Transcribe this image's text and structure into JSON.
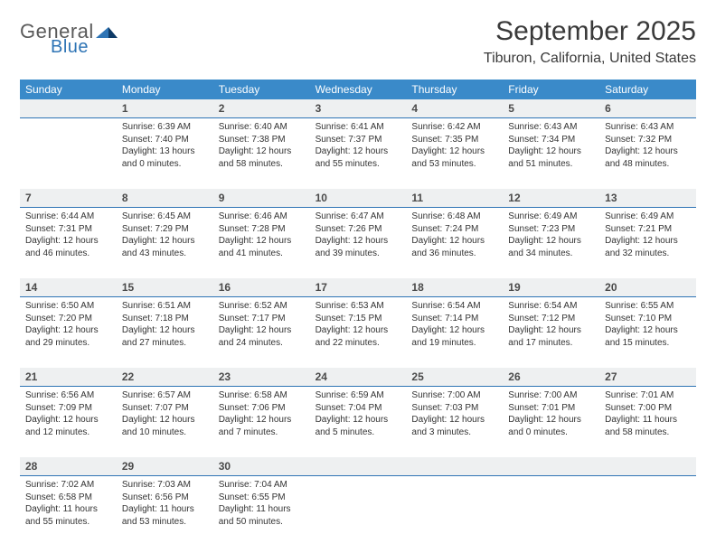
{
  "logo": {
    "general": "General",
    "blue": "Blue"
  },
  "title": "September 2025",
  "subtitle": "Tiburon, California, United States",
  "style": {
    "header_bg": "#3a8ac9",
    "header_text": "#ffffff",
    "daynum_bg": "#eef0f1",
    "daynum_border": "#2e74b5",
    "body_text": "#333333",
    "title_color": "#3a3a3a",
    "logo_gray": "#5a5a5a",
    "logo_blue": "#2e74b5",
    "title_fontsize": 30,
    "subtitle_fontsize": 16,
    "dayheader_fontsize": 12,
    "daynum_fontsize": 12,
    "info_fontsize": 10
  },
  "dayHeaders": [
    "Sunday",
    "Monday",
    "Tuesday",
    "Wednesday",
    "Thursday",
    "Friday",
    "Saturday"
  ],
  "weeks": [
    [
      null,
      {
        "n": "1",
        "sr": "Sunrise: 6:39 AM",
        "ss": "Sunset: 7:40 PM",
        "dl": "Daylight: 13 hours and 0 minutes."
      },
      {
        "n": "2",
        "sr": "Sunrise: 6:40 AM",
        "ss": "Sunset: 7:38 PM",
        "dl": "Daylight: 12 hours and 58 minutes."
      },
      {
        "n": "3",
        "sr": "Sunrise: 6:41 AM",
        "ss": "Sunset: 7:37 PM",
        "dl": "Daylight: 12 hours and 55 minutes."
      },
      {
        "n": "4",
        "sr": "Sunrise: 6:42 AM",
        "ss": "Sunset: 7:35 PM",
        "dl": "Daylight: 12 hours and 53 minutes."
      },
      {
        "n": "5",
        "sr": "Sunrise: 6:43 AM",
        "ss": "Sunset: 7:34 PM",
        "dl": "Daylight: 12 hours and 51 minutes."
      },
      {
        "n": "6",
        "sr": "Sunrise: 6:43 AM",
        "ss": "Sunset: 7:32 PM",
        "dl": "Daylight: 12 hours and 48 minutes."
      }
    ],
    [
      {
        "n": "7",
        "sr": "Sunrise: 6:44 AM",
        "ss": "Sunset: 7:31 PM",
        "dl": "Daylight: 12 hours and 46 minutes."
      },
      {
        "n": "8",
        "sr": "Sunrise: 6:45 AM",
        "ss": "Sunset: 7:29 PM",
        "dl": "Daylight: 12 hours and 43 minutes."
      },
      {
        "n": "9",
        "sr": "Sunrise: 6:46 AM",
        "ss": "Sunset: 7:28 PM",
        "dl": "Daylight: 12 hours and 41 minutes."
      },
      {
        "n": "10",
        "sr": "Sunrise: 6:47 AM",
        "ss": "Sunset: 7:26 PM",
        "dl": "Daylight: 12 hours and 39 minutes."
      },
      {
        "n": "11",
        "sr": "Sunrise: 6:48 AM",
        "ss": "Sunset: 7:24 PM",
        "dl": "Daylight: 12 hours and 36 minutes."
      },
      {
        "n": "12",
        "sr": "Sunrise: 6:49 AM",
        "ss": "Sunset: 7:23 PM",
        "dl": "Daylight: 12 hours and 34 minutes."
      },
      {
        "n": "13",
        "sr": "Sunrise: 6:49 AM",
        "ss": "Sunset: 7:21 PM",
        "dl": "Daylight: 12 hours and 32 minutes."
      }
    ],
    [
      {
        "n": "14",
        "sr": "Sunrise: 6:50 AM",
        "ss": "Sunset: 7:20 PM",
        "dl": "Daylight: 12 hours and 29 minutes."
      },
      {
        "n": "15",
        "sr": "Sunrise: 6:51 AM",
        "ss": "Sunset: 7:18 PM",
        "dl": "Daylight: 12 hours and 27 minutes."
      },
      {
        "n": "16",
        "sr": "Sunrise: 6:52 AM",
        "ss": "Sunset: 7:17 PM",
        "dl": "Daylight: 12 hours and 24 minutes."
      },
      {
        "n": "17",
        "sr": "Sunrise: 6:53 AM",
        "ss": "Sunset: 7:15 PM",
        "dl": "Daylight: 12 hours and 22 minutes."
      },
      {
        "n": "18",
        "sr": "Sunrise: 6:54 AM",
        "ss": "Sunset: 7:14 PM",
        "dl": "Daylight: 12 hours and 19 minutes."
      },
      {
        "n": "19",
        "sr": "Sunrise: 6:54 AM",
        "ss": "Sunset: 7:12 PM",
        "dl": "Daylight: 12 hours and 17 minutes."
      },
      {
        "n": "20",
        "sr": "Sunrise: 6:55 AM",
        "ss": "Sunset: 7:10 PM",
        "dl": "Daylight: 12 hours and 15 minutes."
      }
    ],
    [
      {
        "n": "21",
        "sr": "Sunrise: 6:56 AM",
        "ss": "Sunset: 7:09 PM",
        "dl": "Daylight: 12 hours and 12 minutes."
      },
      {
        "n": "22",
        "sr": "Sunrise: 6:57 AM",
        "ss": "Sunset: 7:07 PM",
        "dl": "Daylight: 12 hours and 10 minutes."
      },
      {
        "n": "23",
        "sr": "Sunrise: 6:58 AM",
        "ss": "Sunset: 7:06 PM",
        "dl": "Daylight: 12 hours and 7 minutes."
      },
      {
        "n": "24",
        "sr": "Sunrise: 6:59 AM",
        "ss": "Sunset: 7:04 PM",
        "dl": "Daylight: 12 hours and 5 minutes."
      },
      {
        "n": "25",
        "sr": "Sunrise: 7:00 AM",
        "ss": "Sunset: 7:03 PM",
        "dl": "Daylight: 12 hours and 3 minutes."
      },
      {
        "n": "26",
        "sr": "Sunrise: 7:00 AM",
        "ss": "Sunset: 7:01 PM",
        "dl": "Daylight: 12 hours and 0 minutes."
      },
      {
        "n": "27",
        "sr": "Sunrise: 7:01 AM",
        "ss": "Sunset: 7:00 PM",
        "dl": "Daylight: 11 hours and 58 minutes."
      }
    ],
    [
      {
        "n": "28",
        "sr": "Sunrise: 7:02 AM",
        "ss": "Sunset: 6:58 PM",
        "dl": "Daylight: 11 hours and 55 minutes."
      },
      {
        "n": "29",
        "sr": "Sunrise: 7:03 AM",
        "ss": "Sunset: 6:56 PM",
        "dl": "Daylight: 11 hours and 53 minutes."
      },
      {
        "n": "30",
        "sr": "Sunrise: 7:04 AM",
        "ss": "Sunset: 6:55 PM",
        "dl": "Daylight: 11 hours and 50 minutes."
      },
      null,
      null,
      null,
      null
    ]
  ]
}
